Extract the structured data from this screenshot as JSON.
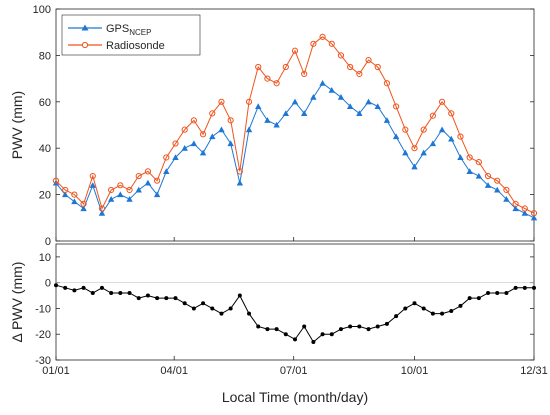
{
  "chart_data": [
    {
      "type": "line",
      "ylabel": "PWV (mm)",
      "ylim": [
        0,
        100
      ],
      "yticks": [
        "0",
        "20",
        "40",
        "60",
        "80",
        "100"
      ],
      "xlim": [
        1,
        365
      ],
      "grid": false,
      "legend_position": "top-left",
      "legend": {
        "gps_main": "GPS",
        "gps_sub": "NCEP",
        "radiosonde": "Radiosonde"
      },
      "series": [
        {
          "name": "GPS_NCEP",
          "color": "#1f77d4",
          "marker": "triangle",
          "x": [
            1,
            8,
            15,
            22,
            29,
            36,
            43,
            50,
            57,
            64,
            71,
            78,
            85,
            92,
            99,
            106,
            113,
            120,
            127,
            134,
            141,
            148,
            155,
            162,
            169,
            176,
            183,
            190,
            197,
            204,
            211,
            218,
            225,
            232,
            239,
            246,
            253,
            260,
            267,
            274,
            281,
            288,
            295,
            302,
            309,
            316,
            323,
            330,
            337,
            344,
            351,
            358,
            365
          ],
          "values": [
            25,
            20,
            17,
            14,
            24,
            12,
            18,
            20,
            18,
            22,
            25,
            20,
            30,
            36,
            40,
            42,
            38,
            45,
            48,
            42,
            25,
            48,
            58,
            52,
            50,
            55,
            60,
            55,
            62,
            68,
            65,
            62,
            58,
            55,
            60,
            58,
            52,
            45,
            38,
            32,
            38,
            42,
            48,
            44,
            36,
            30,
            28,
            24,
            22,
            18,
            14,
            12,
            10
          ]
        },
        {
          "name": "Radiosonde",
          "color": "#f0541e",
          "marker": "circle",
          "x": [
            1,
            8,
            15,
            22,
            29,
            36,
            43,
            50,
            57,
            64,
            71,
            78,
            85,
            92,
            99,
            106,
            113,
            120,
            127,
            134,
            141,
            148,
            155,
            162,
            169,
            176,
            183,
            190,
            197,
            204,
            211,
            218,
            225,
            232,
            239,
            246,
            253,
            260,
            267,
            274,
            281,
            288,
            295,
            302,
            309,
            316,
            323,
            330,
            337,
            344,
            351,
            358,
            365
          ],
          "values": [
            26,
            22,
            20,
            16,
            28,
            14,
            22,
            24,
            22,
            28,
            30,
            26,
            36,
            42,
            48,
            52,
            46,
            55,
            60,
            52,
            30,
            60,
            75,
            70,
            68,
            75,
            82,
            72,
            85,
            88,
            85,
            80,
            75,
            72,
            78,
            75,
            68,
            58,
            48,
            40,
            48,
            54,
            60,
            55,
            45,
            36,
            34,
            28,
            26,
            22,
            16,
            14,
            12
          ]
        }
      ]
    },
    {
      "type": "line",
      "ylabel": "Δ PWV (mm)",
      "ylim": [
        -30,
        15
      ],
      "yticks": [
        "10",
        "0",
        "-10",
        "-20",
        "-30"
      ],
      "xlabel": "Local Time (month/day)",
      "xticks": [
        "01/01",
        "04/01",
        "07/01",
        "10/01",
        "12/31"
      ],
      "xtick_days": [
        1,
        91,
        182,
        274,
        365
      ],
      "xlim": [
        1,
        365
      ],
      "grid": false,
      "series": [
        {
          "name": "",
          "color": "#000000",
          "marker": "dot",
          "x": [
            1,
            8,
            15,
            22,
            29,
            36,
            43,
            50,
            57,
            64,
            71,
            78,
            85,
            92,
            99,
            106,
            113,
            120,
            127,
            134,
            141,
            148,
            155,
            162,
            169,
            176,
            183,
            190,
            197,
            204,
            211,
            218,
            225,
            232,
            239,
            246,
            253,
            260,
            267,
            274,
            281,
            288,
            295,
            302,
            309,
            316,
            323,
            330,
            337,
            344,
            351,
            358,
            365
          ],
          "values": [
            -1,
            -2,
            -3,
            -2,
            -4,
            -2,
            -4,
            -4,
            -4,
            -6,
            -5,
            -6,
            -6,
            -6,
            -8,
            -10,
            -8,
            -10,
            -12,
            -10,
            -5,
            -12,
            -17,
            -18,
            -18,
            -20,
            -22,
            -17,
            -23,
            -20,
            -20,
            -18,
            -17,
            -17,
            -18,
            -17,
            -16,
            -13,
            -10,
            -8,
            -10,
            -12,
            -12,
            -11,
            -9,
            -6,
            -6,
            -4,
            -4,
            -4,
            -2,
            -2,
            -2
          ]
        }
      ]
    }
  ]
}
